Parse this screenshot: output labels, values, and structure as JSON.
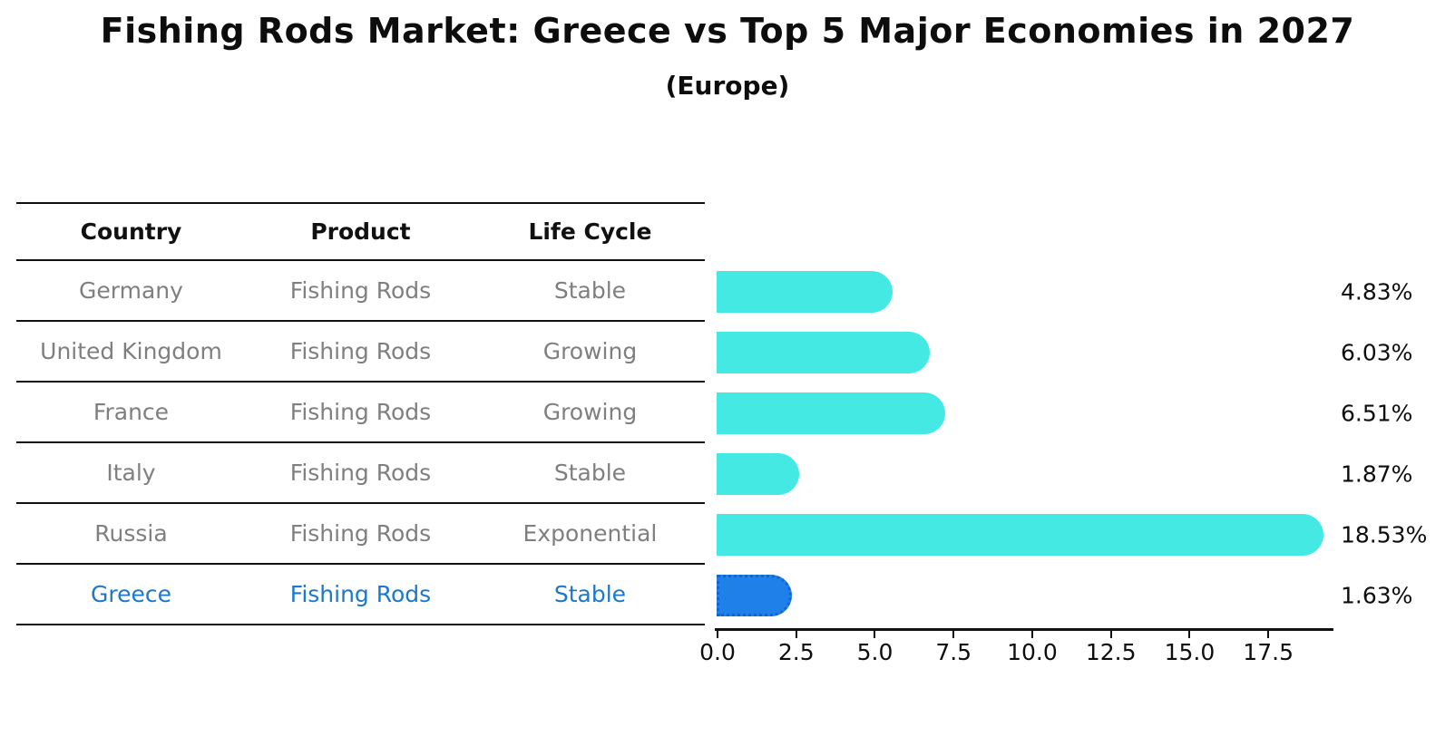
{
  "header": {
    "title": "Fishing Rods Market: Greece vs Top 5 Major Economies in 2027",
    "subtitle": "(Europe)"
  },
  "table": {
    "headers": [
      "Country",
      "Product",
      "Life Cycle"
    ],
    "rows": [
      {
        "country": "Germany",
        "product": "Fishing Rods",
        "life_cycle": "Stable",
        "highlight": false
      },
      {
        "country": "United Kingdom",
        "product": "Fishing Rods",
        "life_cycle": "Growing",
        "highlight": false
      },
      {
        "country": "France",
        "product": "Fishing Rods",
        "life_cycle": "Growing",
        "highlight": false
      },
      {
        "country": "Italy",
        "product": "Fishing Rods",
        "life_cycle": "Stable",
        "highlight": false
      },
      {
        "country": "Russia",
        "product": "Fishing Rods",
        "life_cycle": "Exponential",
        "highlight": false
      },
      {
        "country": "Greece",
        "product": "Fishing Rods",
        "life_cycle": "Stable",
        "highlight": true
      }
    ]
  },
  "chart_data": {
    "type": "bar",
    "orientation": "horizontal",
    "title": "Fishing Rods Market: Greece vs Top 5 Major Economies in 2027",
    "subtitle": "(Europe)",
    "categories": [
      "Germany",
      "United Kingdom",
      "France",
      "Italy",
      "Russia",
      "Greece"
    ],
    "values": [
      4.83,
      6.03,
      6.51,
      1.87,
      18.53,
      1.63
    ],
    "value_labels": [
      "4.83%",
      "6.03%",
      "6.51%",
      "1.87%",
      "18.53%",
      "1.63%"
    ],
    "highlight_category": "Greece",
    "x_tick_values": [
      0.0,
      2.5,
      5.0,
      7.5,
      10.0,
      12.5,
      15.0,
      17.5
    ],
    "x_tick_labels": [
      "0.0",
      "2.5",
      "5.0",
      "7.5",
      "10.0",
      "12.5",
      "15.0",
      "17.5"
    ],
    "xlim": [
      0,
      19.6
    ],
    "grid": false,
    "legend": false,
    "colors": {
      "bar": "#45e9e3",
      "highlight_bar": "#2080ea",
      "highlight_border": "#1565c8",
      "highlight_text": "#1b78cc",
      "table_text": "#7f7f7f",
      "axis_text": "#0d0d0d"
    }
  }
}
